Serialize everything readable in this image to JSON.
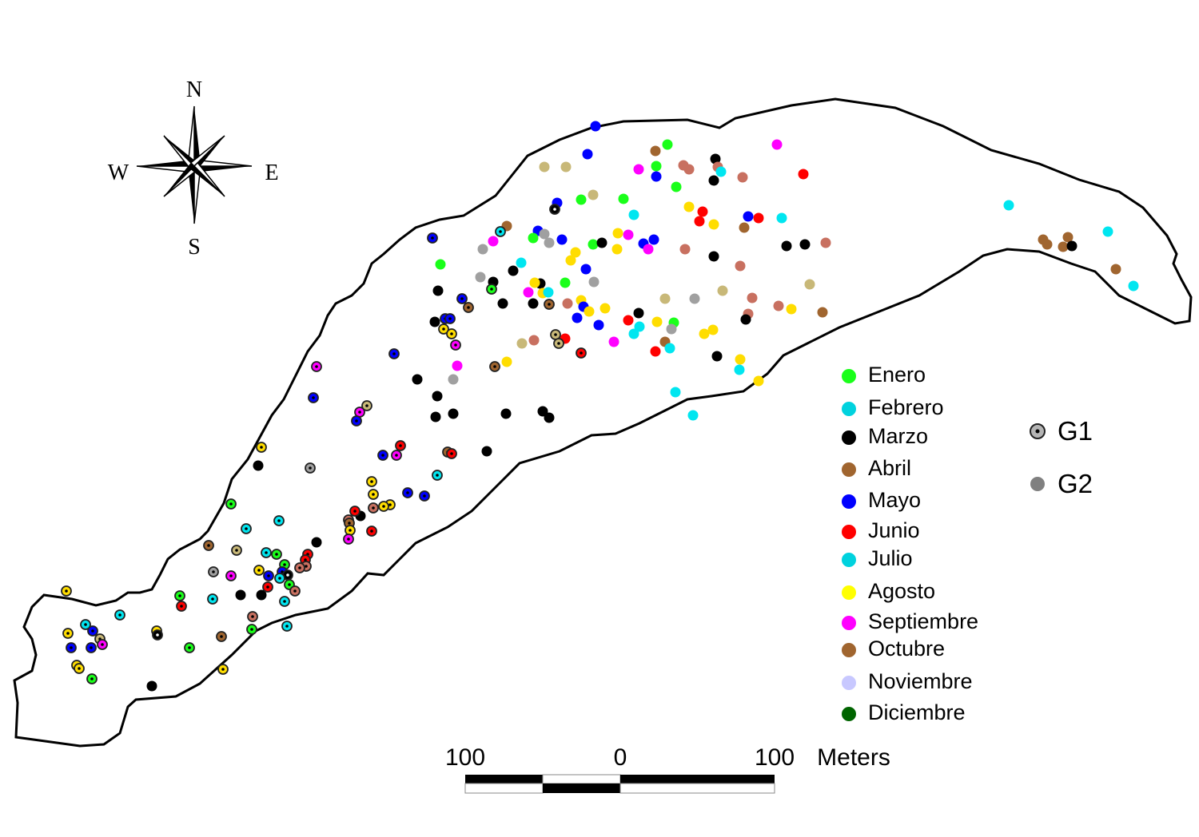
{
  "compass": {
    "north": "N",
    "south": "S",
    "east": "E",
    "west": "W"
  },
  "legend": {
    "months": [
      {
        "label": "Enero",
        "color": "#1aff1a"
      },
      {
        "label": "Febrero",
        "color": "#00d2de"
      },
      {
        "label": "Marzo",
        "color": "#000000"
      },
      {
        "label": "Abril",
        "color": "#a0652f"
      },
      {
        "label": "Mayo",
        "color": "#0000ff"
      },
      {
        "label": "Junio",
        "color": "#ff0000"
      },
      {
        "label": "Julio",
        "color": "#00d2de"
      },
      {
        "label": "Agosto",
        "color": "#ffff00"
      },
      {
        "label": "Septiembre",
        "color": "#ff00ff"
      },
      {
        "label": "Octubre",
        "color": "#a0652f"
      },
      {
        "label": "Noviembre",
        "color": "#c8c8ff"
      },
      {
        "label": "Diciembre",
        "color": "#006400"
      }
    ],
    "groups": [
      {
        "label": "G1",
        "color": "#b4b4b4"
      },
      {
        "label": "G2",
        "color": "#808080"
      }
    ]
  },
  "scale_bar": {
    "left_label": "100",
    "center_label": "0",
    "right_label": "100",
    "unit": "Meters"
  }
}
